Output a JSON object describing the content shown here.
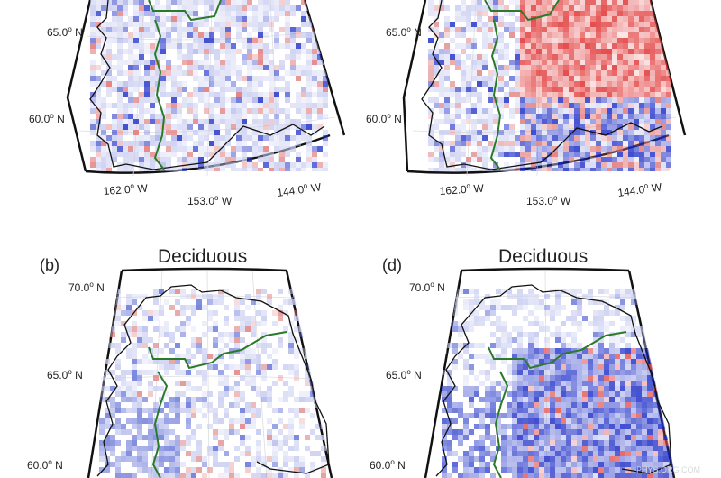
{
  "panels": {
    "top_left": {
      "lat_labels": [
        {
          "deg": "65.0",
          "hem": "N"
        },
        {
          "deg": "60.0",
          "hem": "N"
        }
      ],
      "lon_labels": [
        {
          "deg": "162.0",
          "hem": "W"
        },
        {
          "deg": "153.0",
          "hem": "W"
        },
        {
          "deg": "144.0",
          "hem": "W"
        }
      ],
      "pattern": "mixed"
    },
    "top_right": {
      "lat_labels": [
        {
          "deg": "65.0",
          "hem": "N"
        },
        {
          "deg": "60.0",
          "hem": "N"
        }
      ],
      "lon_labels": [
        {
          "deg": "162.0",
          "hem": "W"
        },
        {
          "deg": "153.0",
          "hem": "W"
        },
        {
          "deg": "144.0",
          "hem": "W"
        }
      ],
      "pattern": "red_north_blue_south"
    },
    "b": {
      "letter": "(b)",
      "title": "Deciduous",
      "lat_labels": [
        {
          "deg": "70.0",
          "hem": "N"
        },
        {
          "deg": "65.0",
          "hem": "N"
        },
        {
          "deg": "60.0",
          "hem": "N"
        }
      ],
      "pattern": "light_mixed"
    },
    "d": {
      "letter": "(d)",
      "title": "Deciduous",
      "lat_labels": [
        {
          "deg": "70.0",
          "hem": "N"
        },
        {
          "deg": "65.0",
          "hem": "N"
        },
        {
          "deg": "60.0",
          "hem": "N"
        }
      ],
      "pattern": "strong_blue"
    }
  },
  "degree_symbol": "o",
  "watermark": "PHYS.ORG.COM",
  "colors": {
    "positive": "#e03030",
    "negative": "#2030c8",
    "boundary": "#2a7a2a",
    "outline": "#111111",
    "grid": "#d0d0d0"
  }
}
